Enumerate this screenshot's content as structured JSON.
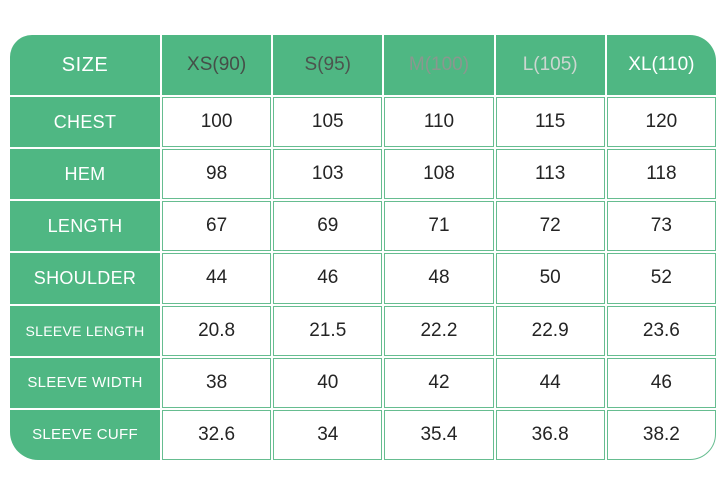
{
  "chart_data": {
    "type": "table",
    "header": [
      "SIZE",
      "XS(90)",
      "S(95)",
      "M(100)",
      "L(105)",
      "XL(110)"
    ],
    "rows": [
      [
        "CHEST",
        "100",
        "105",
        "110",
        "115",
        "120"
      ],
      [
        "HEM",
        "98",
        "103",
        "108",
        "113",
        "118"
      ],
      [
        "LENGTH",
        "67",
        "69",
        "71",
        "72",
        "73"
      ],
      [
        "SHOULDER",
        "44",
        "46",
        "48",
        "50",
        "52"
      ],
      [
        "SLEEVE LENGTH",
        "20.8",
        "21.5",
        "22.2",
        "22.9",
        "23.6"
      ],
      [
        "SLEEVE WIDTH",
        "38",
        "40",
        "42",
        "44",
        "46"
      ],
      [
        "SLEEVE CUFF",
        "32.6",
        "34",
        "35.4",
        "36.8",
        "38.2"
      ]
    ],
    "layout_hints": {
      "grid": "on",
      "header_background": "green",
      "label_column_background": "green",
      "rounded_outer_corners": true
    }
  },
  "style": {
    "cell_green": "#4fb783",
    "grid_green": "#66bd90",
    "label_text_color": "#ffffff",
    "value_text_color": "#242424",
    "header_text_colors": [
      "#454e48",
      "#4c544e",
      "#8a988f",
      "#ccd6d0",
      "#ffffff"
    ]
  }
}
